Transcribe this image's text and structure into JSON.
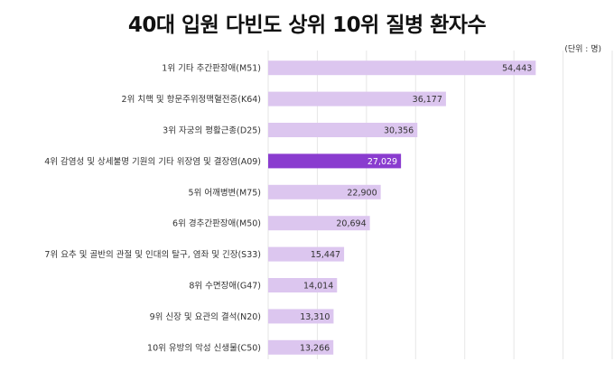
{
  "title": "40대 입원 다빈도 상위 10위 질병 환자수",
  "unit": "(단위 : 명)",
  "colors": {
    "bar": "#dcc6ef",
    "highlight": "#8a3ccf",
    "grid": "#e6e6e6",
    "value_text": "#333333",
    "highlight_text": "#ffffff"
  },
  "chart_data": {
    "type": "bar",
    "orientation": "horizontal",
    "title": "40대 입원 다빈도 상위 10위 질병 환자수",
    "unit": "(단위 : 명)",
    "categories": [
      "1위 기타 추간판장애(M51)",
      "2위 치핵 및 항문주위정맥혈전증(K64)",
      "3위 자궁의 평활근종(D25)",
      "4위 감염성 및 상세불명 기원의 기타 위장염 및 결장염(A09)",
      "5위 어깨병변(M75)",
      "6위 경추간판장애(M50)",
      "7위 요추 및 골반의 관절 및 인대의 탈구, 염좌 및 긴장(S33)",
      "8위 수면장애(G47)",
      "9위 신장 및 요관의 결석(N20)",
      "10위 유방의 악성 신생물(C50)"
    ],
    "values": [
      54443,
      36177,
      30356,
      27029,
      22900,
      20694,
      15447,
      14014,
      13310,
      13266
    ],
    "value_labels": [
      "54,443",
      "36,177",
      "30,356",
      "27,029",
      "22,900",
      "20,694",
      "15,447",
      "14,014",
      "13,310",
      "13,266"
    ],
    "highlight_index": 3,
    "xlim": [
      0,
      70000
    ],
    "grid": true,
    "legend": "none"
  }
}
